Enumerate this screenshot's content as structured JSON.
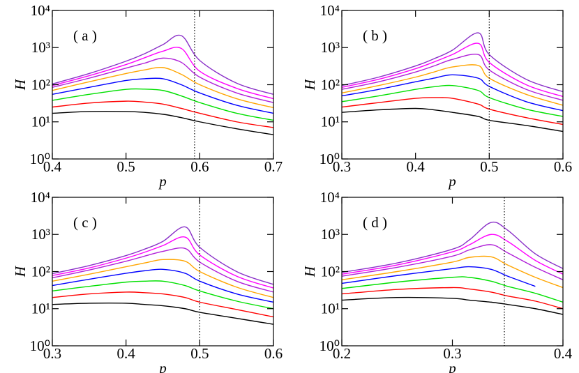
{
  "chart_data": [
    {
      "type": "line",
      "label": "( a )",
      "xlabel": "p",
      "ylabel": "H",
      "log_y": true,
      "xlim": [
        0.4,
        0.7
      ],
      "xticks": [
        0.4,
        0.5,
        0.6,
        0.7
      ],
      "ylim": [
        1,
        10000
      ],
      "yticks": [
        {
          "value": 1,
          "label": "10⁰"
        },
        {
          "value": 10,
          "label": "10¹"
        },
        {
          "value": 100,
          "label": "10²"
        },
        {
          "value": 1000,
          "label": "10³"
        },
        {
          "value": 10000,
          "label": "10⁴"
        }
      ],
      "vline": 0.593,
      "x": [
        0.4,
        0.45,
        0.5,
        0.525,
        0.55,
        0.575,
        0.6,
        0.65,
        0.7
      ],
      "series": [
        {
          "color": "#000000",
          "values": [
            17,
            19,
            19,
            18,
            16,
            13,
            10,
            6.5,
            4.5
          ]
        },
        {
          "color": "#ff0000",
          "values": [
            25,
            32,
            36,
            34,
            30,
            23,
            17,
            10,
            7
          ]
        },
        {
          "color": "#00e000",
          "values": [
            38,
            55,
            75,
            76,
            70,
            50,
            33,
            17,
            11
          ]
        },
        {
          "color": "#0000ff",
          "values": [
            55,
            85,
            130,
            145,
            145,
            100,
            60,
            28,
            17
          ]
        },
        {
          "color": "#ffa500",
          "values": [
            70,
            120,
            200,
            250,
            290,
            190,
            100,
            42,
            24
          ]
        },
        {
          "color": "#b020d8",
          "values": [
            85,
            150,
            280,
            380,
            520,
            400,
            160,
            60,
            33
          ]
        },
        {
          "color": "#ff00ff",
          "values": [
            95,
            175,
            350,
            530,
            800,
            950,
            230,
            80,
            42
          ]
        },
        {
          "color": "#8a30c8",
          "values": [
            105,
            200,
            430,
            680,
            1200,
            2100,
            450,
            110,
            55
          ]
        }
      ]
    },
    {
      "type": "line",
      "label": "( b )",
      "xlabel": "p",
      "ylabel": "H",
      "log_y": true,
      "xlim": [
        0.3,
        0.6
      ],
      "xticks": [
        0.3,
        0.4,
        0.5,
        0.6
      ],
      "ylim": [
        1,
        10000
      ],
      "yticks": [
        {
          "value": 1,
          "label": "10⁰"
        },
        {
          "value": 10,
          "label": "10¹"
        },
        {
          "value": 100,
          "label": "10²"
        },
        {
          "value": 1000,
          "label": "10³"
        },
        {
          "value": 10000,
          "label": "10⁴"
        }
      ],
      "vline": 0.5,
      "x": [
        0.3,
        0.35,
        0.4,
        0.425,
        0.45,
        0.485,
        0.5,
        0.55,
        0.6
      ],
      "series": [
        {
          "color": "#000000",
          "values": [
            18,
            21,
            23,
            21,
            18,
            14,
            11,
            8,
            5.5
          ]
        },
        {
          "color": "#ff0000",
          "values": [
            25,
            33,
            43,
            45,
            43,
            30,
            22,
            13,
            8.5
          ]
        },
        {
          "color": "#00e000",
          "values": [
            35,
            50,
            75,
            88,
            95,
            70,
            45,
            22,
            14
          ]
        },
        {
          "color": "#0000ff",
          "values": [
            50,
            75,
            120,
            150,
            185,
            150,
            90,
            35,
            20
          ]
        },
        {
          "color": "#ffa500",
          "values": [
            60,
            95,
            160,
            220,
            300,
            330,
            150,
            55,
            28
          ]
        },
        {
          "color": "#b020d8",
          "values": [
            75,
            120,
            220,
            320,
            480,
            650,
            250,
            75,
            38
          ]
        },
        {
          "color": "#ff00ff",
          "values": [
            85,
            140,
            270,
            410,
            650,
            1300,
            400,
            100,
            48
          ]
        },
        {
          "color": "#8a30c8",
          "values": [
            95,
            160,
            320,
            500,
            850,
            2500,
            650,
            140,
            65
          ]
        }
      ]
    },
    {
      "type": "line",
      "label": "( c )",
      "xlabel": "p",
      "ylabel": "H",
      "log_y": true,
      "xlim": [
        0.3,
        0.6
      ],
      "xticks": [
        0.3,
        0.4,
        0.5,
        0.6
      ],
      "ylim": [
        1,
        10000
      ],
      "yticks": [
        {
          "value": 1,
          "label": "10⁰"
        },
        {
          "value": 10,
          "label": "10¹"
        },
        {
          "value": 100,
          "label": "10²"
        },
        {
          "value": 1000,
          "label": "10³"
        },
        {
          "value": 10000,
          "label": "10⁴"
        }
      ],
      "vline": 0.5,
      "x": [
        0.3,
        0.35,
        0.4,
        0.425,
        0.45,
        0.48,
        0.5,
        0.55,
        0.6
      ],
      "series": [
        {
          "color": "#000000",
          "values": [
            13,
            14,
            14,
            13,
            12,
            10,
            8,
            5.5,
            3.8
          ]
        },
        {
          "color": "#ff0000",
          "values": [
            20,
            25,
            28,
            27,
            25,
            20,
            15,
            9.5,
            6
          ]
        },
        {
          "color": "#00e000",
          "values": [
            30,
            40,
            52,
            55,
            55,
            42,
            30,
            16,
            10
          ]
        },
        {
          "color": "#0000ff",
          "values": [
            42,
            62,
            90,
            105,
            115,
            90,
            55,
            25,
            15
          ]
        },
        {
          "color": "#ffa500",
          "values": [
            55,
            85,
            135,
            170,
            210,
            190,
            100,
            38,
            20
          ]
        },
        {
          "color": "#b020d8",
          "values": [
            68,
            110,
            190,
            260,
            350,
            420,
            180,
            55,
            28
          ]
        },
        {
          "color": "#ff00ff",
          "values": [
            78,
            125,
            230,
            330,
            500,
            850,
            280,
            75,
            36
          ]
        },
        {
          "color": "#8a30c8",
          "values": [
            88,
            145,
            270,
            400,
            650,
            1600,
            450,
            100,
            45
          ]
        }
      ]
    },
    {
      "type": "line",
      "label": "( d )",
      "xlabel": "p",
      "ylabel": "H",
      "log_y": true,
      "xlim": [
        0.2,
        0.4
      ],
      "xticks": [
        0.2,
        0.3,
        0.4
      ],
      "ylim": [
        1,
        10000
      ],
      "yticks": [
        {
          "value": 1,
          "label": "10⁰"
        },
        {
          "value": 10,
          "label": "10¹"
        },
        {
          "value": 100,
          "label": "10²"
        },
        {
          "value": 1000,
          "label": "10³"
        },
        {
          "value": 10000,
          "label": "10⁴"
        }
      ],
      "vline": 0.347,
      "x": [
        0.2,
        0.25,
        0.3,
        0.315,
        0.335,
        0.35,
        0.375,
        0.4
      ],
      "series": [
        {
          "color": "#000000",
          "values": [
            17,
            20,
            19,
            17,
            15,
            13,
            10,
            7
          ]
        },
        {
          "color": "#ff0000",
          "values": [
            25,
            33,
            37,
            34,
            28,
            22,
            16,
            10
          ]
        },
        {
          "color": "#00e000",
          "values": [
            35,
            52,
            70,
            70,
            55,
            40,
            26,
            15
          ]
        },
        {
          "color": "#0000ff",
          "values": [
            48,
            78,
            120,
            135,
            115,
            75,
            40,
            null
          ]
        },
        {
          "color": "#ffa500",
          "values": [
            60,
            100,
            180,
            240,
            250,
            150,
            70,
            37
          ]
        },
        {
          "color": "#b020d8",
          "values": [
            75,
            130,
            260,
            380,
            530,
            320,
            130,
            60
          ]
        },
        {
          "color": "#ff00ff",
          "values": [
            85,
            150,
            340,
            520,
            1000,
            650,
            200,
            85
          ]
        },
        {
          "color": "#8a30c8",
          "values": [
            95,
            170,
            400,
            700,
            2100,
            1300,
            300,
            120
          ]
        }
      ]
    }
  ]
}
